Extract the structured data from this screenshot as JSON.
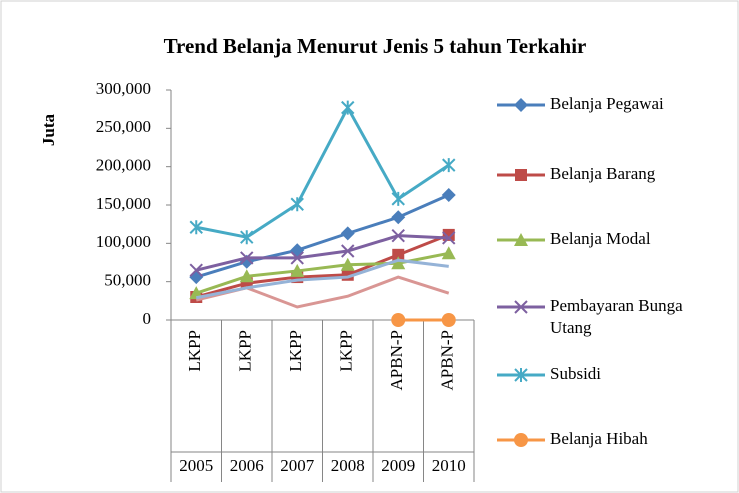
{
  "chart_data": {
    "type": "line",
    "title": "Trend Belanja Menurut Jenis 5 tahun Terkahir",
    "y_label": "Juta",
    "categories": [
      "LKPP",
      "LKPP",
      "LKPP",
      "LKPP",
      "APBN-P",
      "APBN-P"
    ],
    "category_groups": [
      "2005",
      "2006",
      "2007",
      "2008",
      "2009",
      "2010"
    ],
    "ylim": [
      0,
      300000
    ],
    "yticks": [
      0,
      {
        "value": 50000,
        "label": "50,000"
      },
      {
        "value": 100000,
        "label": "100,000"
      },
      {
        "value": 150000,
        "label": "150,000"
      },
      {
        "value": 200000,
        "label": "200,000"
      },
      {
        "value": 250000,
        "label": "250,000"
      },
      {
        "value": 300000,
        "label": "300,000"
      }
    ],
    "grid": false,
    "legend": "right",
    "series": [
      {
        "name": "Belanja Pegawai",
        "color": "#4a7ebb",
        "marker": "diamond",
        "values": [
          56000,
          76000,
          91000,
          113000,
          134000,
          163000
        ]
      },
      {
        "name": "Belanja Barang",
        "color": "#be4b48",
        "marker": "square",
        "values": [
          30000,
          48000,
          56000,
          59000,
          85000,
          111000
        ]
      },
      {
        "name": "Belanja Modal",
        "color": "#98b954",
        "marker": "triangle",
        "values": [
          35000,
          57000,
          64000,
          72000,
          74000,
          87000
        ]
      },
      {
        "name": "Pembayaran Bunga Utang",
        "color": "#7d60a0",
        "marker": "x",
        "values": [
          65000,
          81000,
          81000,
          90000,
          110000,
          107000
        ]
      },
      {
        "name": "Subsidi",
        "color": "#46aac5",
        "marker": "star",
        "values": [
          121000,
          108000,
          151000,
          277000,
          158000,
          202000
        ]
      },
      {
        "name": "Belanja Hibah",
        "color": "#f79646",
        "marker": "circle",
        "values": [
          null,
          null,
          null,
          null,
          0,
          0
        ]
      },
      {
        "color": "#d99694",
        "values": [
          26000,
          42000,
          17000,
          31000,
          56000,
          35000
        ]
      },
      {
        "color": "#95b3d7",
        "values": [
          29000,
          42000,
          52000,
          56000,
          78000,
          70000
        ]
      }
    ]
  }
}
